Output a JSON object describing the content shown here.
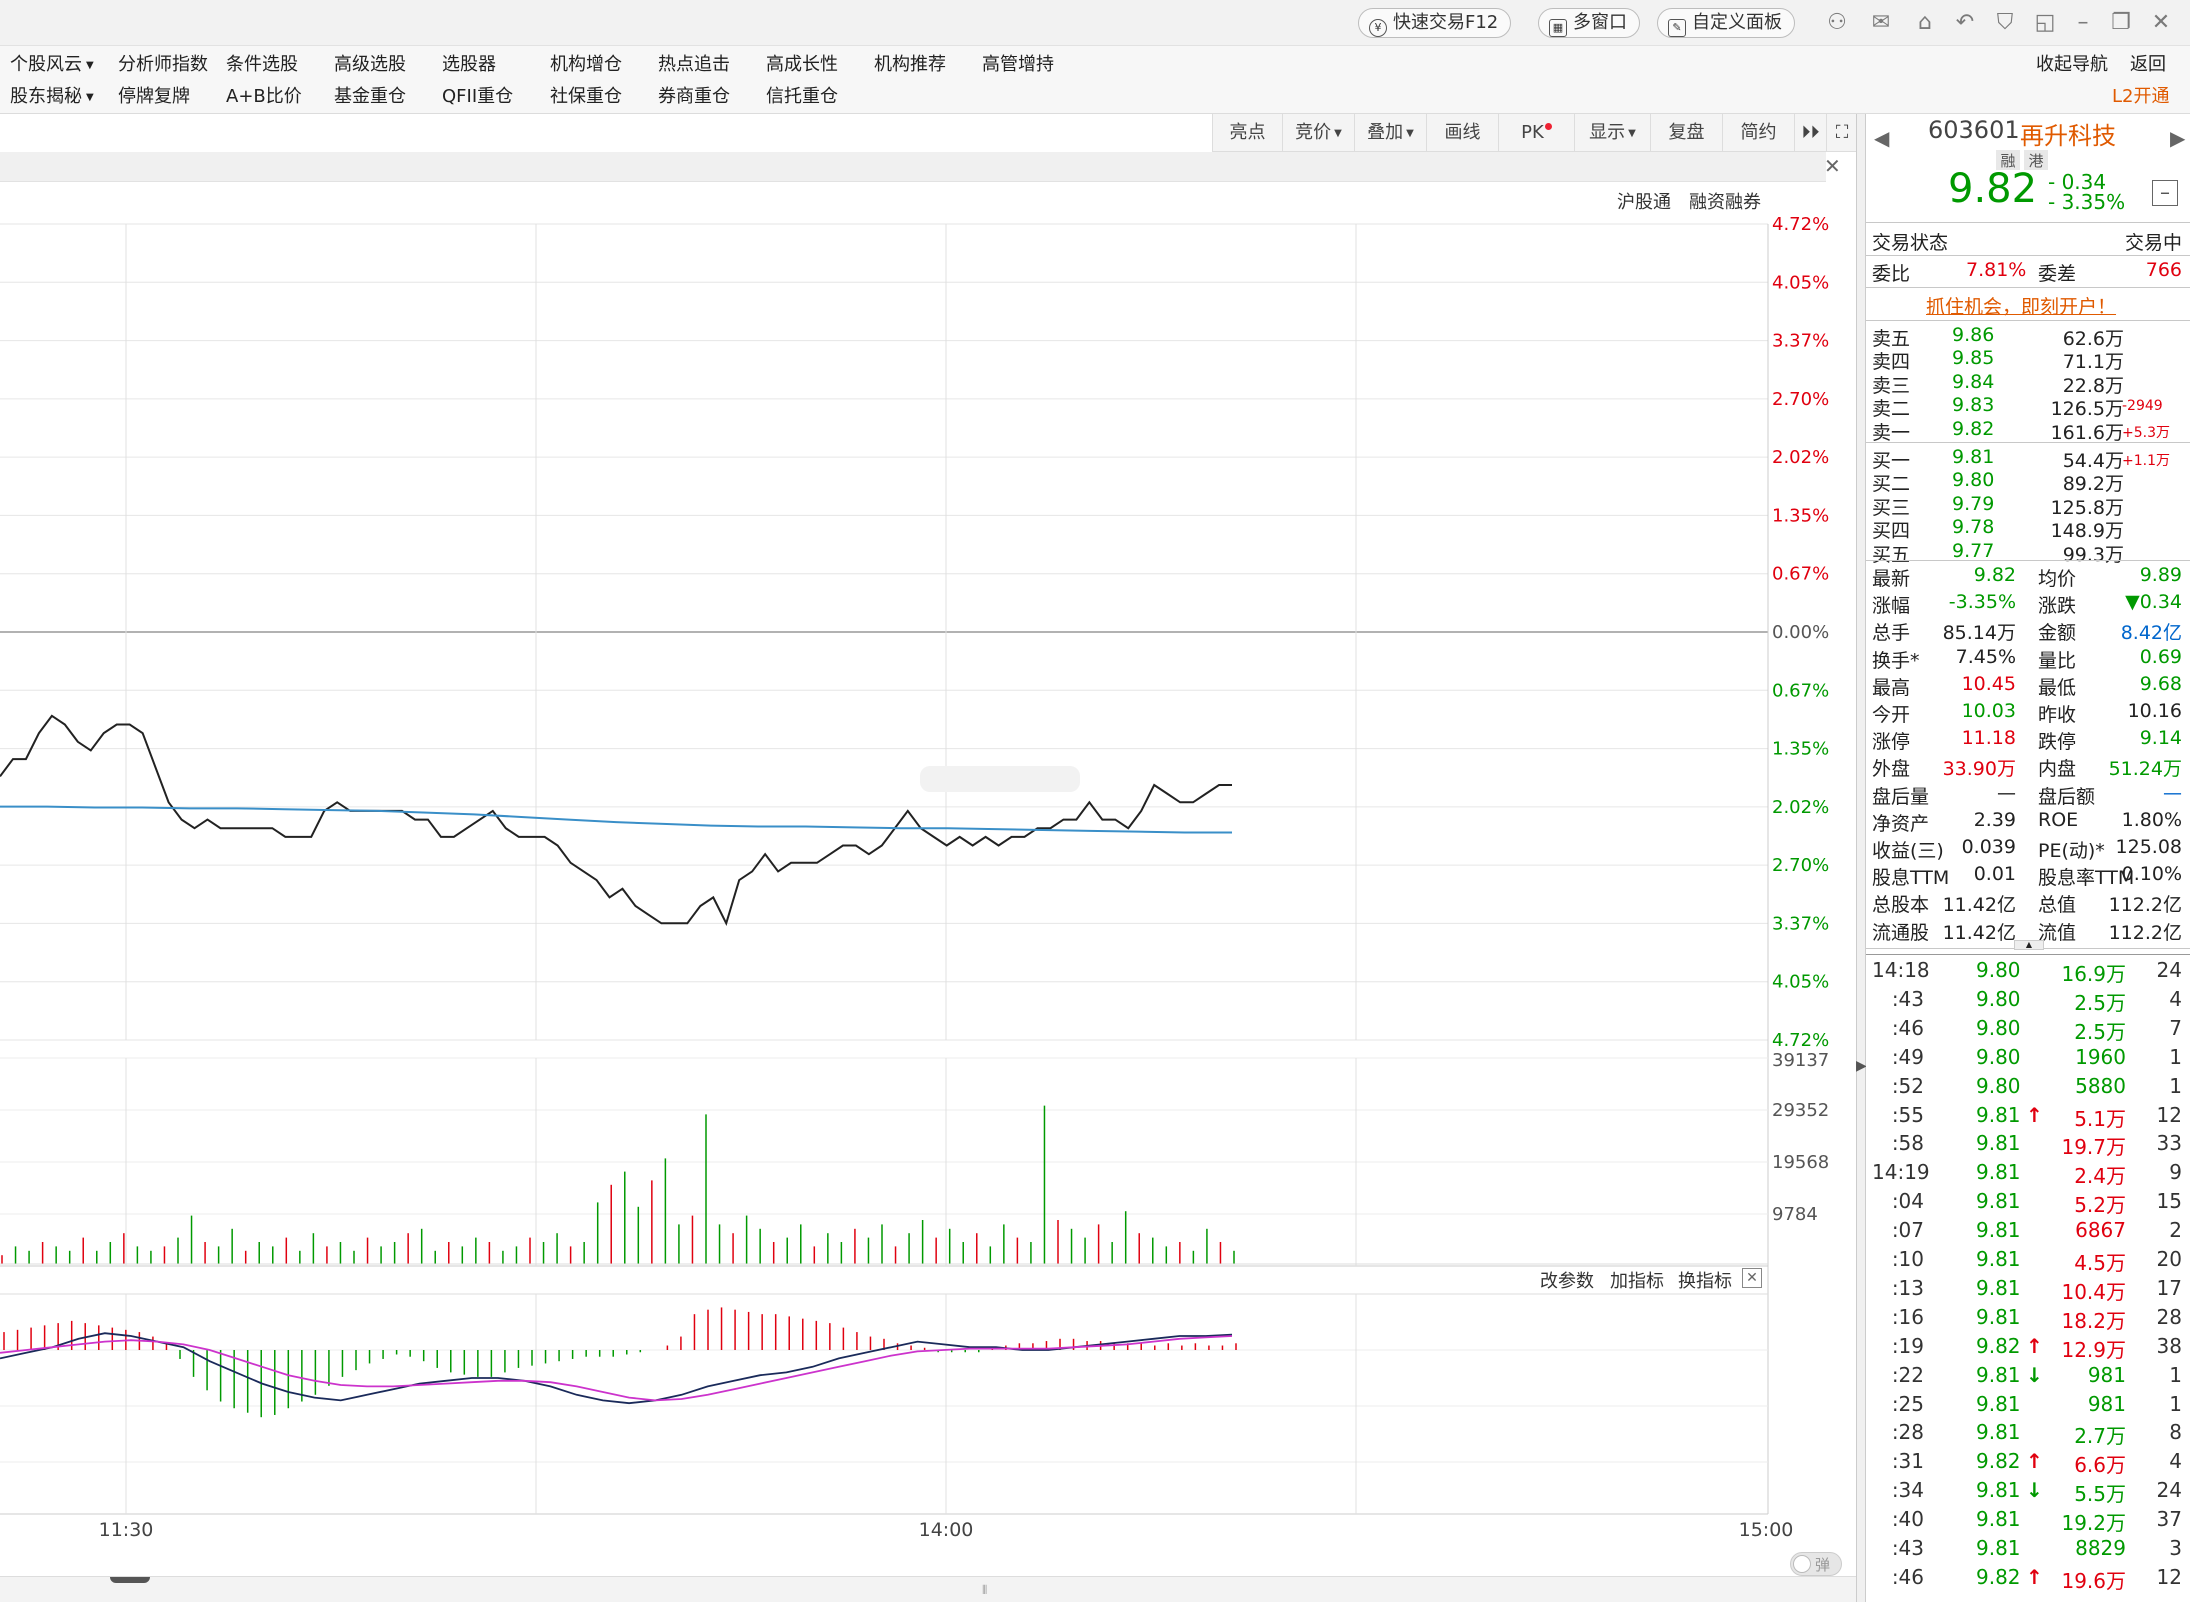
{
  "titlebar": {
    "quick_trade": "快速交易F12",
    "multi_window": "多窗口",
    "custom_panel": "自定义面板"
  },
  "menu": {
    "row1": [
      "个股风云",
      "分析师指数",
      "条件选股",
      "高级选股",
      "选股器",
      "机构增仓",
      "热点追击",
      "高成长性",
      "机构推荐",
      "高管增持"
    ],
    "row2": [
      "股东揭秘",
      "停牌复牌",
      "A+B比价",
      "基金重仓",
      "QFII重仓",
      "社保重仓",
      "券商重仓",
      "信托重仓"
    ],
    "collapse_nav": "收起导航",
    "back": "返回",
    "l2": "L2开通"
  },
  "toolbar": {
    "items": [
      "亮点",
      "竞价",
      "叠加",
      "画线",
      "PK",
      "显示",
      "复盘",
      "简约"
    ]
  },
  "chart_labels": {
    "hugutong": "沪股通",
    "margin": "融资融券",
    "macd_params": "改参数",
    "add_indicator": "加指标",
    "switch_indicator": "换指标",
    "danmaku": "弹"
  },
  "chart_data": {
    "type": "line",
    "y_pct_ticks": [
      "4.72%",
      "4.05%",
      "3.37%",
      "2.70%",
      "2.02%",
      "1.35%",
      "0.67%",
      "0.00%",
      "0.67%",
      "1.35%",
      "2.02%",
      "2.70%",
      "3.37%",
      "4.05%",
      "4.72%"
    ],
    "volume_ticks": [
      "39137",
      "29352",
      "19568",
      "9784"
    ],
    "x_ticks": [
      "11:30",
      "14:00",
      "15:00"
    ],
    "grid": true,
    "price_series": [
      3.05,
      3.25,
      3.25,
      3.55,
      3.75,
      3.65,
      3.45,
      3.35,
      3.55,
      3.65,
      3.65,
      3.55,
      3.15,
      2.75,
      2.55,
      2.45,
      2.55,
      2.45,
      2.45,
      2.45,
      2.45,
      2.45,
      2.35,
      2.35,
      2.35,
      2.65,
      2.75,
      2.65,
      2.65,
      2.65,
      2.65,
      2.65,
      2.55,
      2.55,
      2.35,
      2.35,
      2.45,
      2.55,
      2.65,
      2.45,
      2.35,
      2.35,
      2.35,
      2.25,
      2.05,
      1.95,
      1.85,
      1.65,
      1.75,
      1.55,
      1.45,
      1.35,
      1.35,
      1.35,
      1.55,
      1.65,
      1.35,
      1.85,
      1.95,
      2.15,
      1.95,
      2.05,
      2.05,
      2.05,
      2.15,
      2.25,
      2.25,
      2.15,
      2.25,
      2.45,
      2.65,
      2.45,
      2.35,
      2.25,
      2.35,
      2.25,
      2.35,
      2.25,
      2.35,
      2.35,
      2.45,
      2.45,
      2.55,
      2.55,
      2.75,
      2.55,
      2.55,
      2.45,
      2.65,
      2.95,
      2.85,
      2.75,
      2.75,
      2.85,
      2.95,
      2.95
    ],
    "avg_series": [
      2.7,
      2.7,
      2.69,
      2.69,
      2.68,
      2.68,
      2.67,
      2.66,
      2.65,
      2.63,
      2.61,
      2.58,
      2.55,
      2.52,
      2.5,
      2.48,
      2.47,
      2.47,
      2.46,
      2.45,
      2.45,
      2.44,
      2.43,
      2.42,
      2.41,
      2.4,
      2.4
    ],
    "volume_bars": [
      2,
      4,
      3,
      5,
      4,
      3,
      6,
      3,
      5,
      7,
      4,
      3,
      4,
      6,
      11,
      5,
      4,
      8,
      3,
      5,
      4,
      6,
      3,
      7,
      4,
      5,
      3,
      6,
      4,
      5,
      7,
      8,
      3,
      5,
      4,
      6,
      5,
      3,
      4,
      6,
      5,
      7,
      4,
      5,
      14,
      18,
      21,
      13,
      19,
      24,
      9,
      11,
      34,
      9,
      7,
      11,
      8,
      5,
      6,
      9,
      4,
      7,
      5,
      8,
      6,
      9,
      4,
      7,
      10,
      6,
      8,
      5,
      7,
      4,
      9,
      6,
      5,
      36,
      10,
      8,
      6,
      9,
      5,
      12,
      7,
      6,
      4,
      5,
      3,
      8,
      5,
      3
    ],
    "macd_dif": [
      -0.6,
      -0.2,
      0.2,
      0.8,
      1.2,
      1.0,
      0.6,
      0.2,
      -0.8,
      -1.6,
      -2.4,
      -3.0,
      -3.4,
      -3.6,
      -3.2,
      -2.8,
      -2.4,
      -2.2,
      -2.0,
      -2.0,
      -2.2,
      -2.6,
      -3.2,
      -3.6,
      -3.8,
      -3.6,
      -3.2,
      -2.6,
      -2.2,
      -1.8,
      -1.6,
      -1.2,
      -0.6,
      -0.2,
      0.2,
      0.6,
      0.4,
      0.2,
      0.2,
      0.0,
      0.0,
      0.2,
      0.4,
      0.6,
      0.8,
      1.0,
      1.0,
      1.1
    ],
    "macd_dea": [
      -0.2,
      0.0,
      0.2,
      0.4,
      0.6,
      0.7,
      0.6,
      0.4,
      0.0,
      -0.6,
      -1.2,
      -1.8,
      -2.2,
      -2.5,
      -2.6,
      -2.6,
      -2.5,
      -2.4,
      -2.3,
      -2.2,
      -2.2,
      -2.3,
      -2.6,
      -3.0,
      -3.4,
      -3.6,
      -3.5,
      -3.2,
      -2.8,
      -2.4,
      -2.0,
      -1.6,
      -1.2,
      -0.8,
      -0.4,
      -0.1,
      0.0,
      0.1,
      0.1,
      0.1,
      0.1,
      0.2,
      0.3,
      0.4,
      0.6,
      0.8,
      0.9,
      1.0
    ],
    "macd_hist": [
      0.8,
      0.9,
      1.0,
      1.1,
      1.2,
      1.3,
      1.2,
      1.1,
      1.0,
      0.9,
      0.8,
      0.6,
      0.3,
      -0.4,
      -1.2,
      -1.8,
      -2.3,
      -2.6,
      -2.8,
      -3.0,
      -2.9,
      -2.6,
      -2.3,
      -2.0,
      -1.6,
      -1.2,
      -0.9,
      -0.6,
      -0.4,
      -0.2,
      -0.3,
      -0.5,
      -0.8,
      -1.0,
      -1.1,
      -1.2,
      -1.2,
      -1.0,
      -0.8,
      -0.7,
      -0.6,
      -0.5,
      -0.4,
      -0.3,
      -0.3,
      -0.3,
      -0.2,
      -0.1,
      0.0,
      0.2,
      0.6,
      1.6,
      1.8,
      1.9,
      1.8,
      1.7,
      1.6,
      1.6,
      1.5,
      1.4,
      1.3,
      1.2,
      1.0,
      0.8,
      0.6,
      0.5,
      0.3,
      0.2,
      0.1,
      -0.1,
      -0.1,
      -0.1,
      -0.1,
      0.1,
      0.2,
      0.3,
      0.3,
      0.4,
      0.5,
      0.5,
      0.4,
      0.4,
      0.3,
      0.3,
      0.3,
      0.2,
      0.3,
      0.2,
      0.3,
      0.2,
      0.2,
      0.3
    ]
  },
  "quote": {
    "code": "603601",
    "name": "再升科技",
    "tag1": "融",
    "tag2": "港",
    "price": "9.82",
    "change": "- 0.34",
    "change_pct": "- 3.35%",
    "status_label": "交易状态",
    "status_value": "交易中",
    "weibi_label": "委比",
    "weibi_value": "7.81%",
    "weicha_label": "委差",
    "weicha_value": "766",
    "promo": "抓住机会，即刻开户！",
    "sells": [
      {
        "label": "卖五",
        "price": "9.86",
        "vol": "62.6万",
        "delta": ""
      },
      {
        "label": "卖四",
        "price": "9.85",
        "vol": "71.1万",
        "delta": ""
      },
      {
        "label": "卖三",
        "price": "9.84",
        "vol": "22.8万",
        "delta": ""
      },
      {
        "label": "卖二",
        "price": "9.83",
        "vol": "126.5万",
        "delta": "-2949"
      },
      {
        "label": "卖一",
        "price": "9.82",
        "vol": "161.6万",
        "delta": "+5.3万"
      }
    ],
    "buys": [
      {
        "label": "买一",
        "price": "9.81",
        "vol": "54.4万",
        "delta": "+1.1万"
      },
      {
        "label": "买二",
        "price": "9.80",
        "vol": "89.2万",
        "delta": ""
      },
      {
        "label": "买三",
        "price": "9.79",
        "vol": "125.8万",
        "delta": ""
      },
      {
        "label": "买四",
        "price": "9.78",
        "vol": "148.9万",
        "delta": ""
      },
      {
        "label": "买五",
        "price": "9.77",
        "vol": "99.3万",
        "delta": ""
      }
    ],
    "stats": [
      {
        "l1": "最新",
        "v1": "9.82",
        "c1": "g",
        "l2": "均价",
        "v2": "9.89",
        "c2": "g"
      },
      {
        "l1": "涨幅",
        "v1": "-3.35%",
        "c1": "g",
        "l2": "涨跌",
        "v2": "▼0.34",
        "c2": "g"
      },
      {
        "l1": "总手",
        "v1": "85.14万",
        "c1": "k",
        "l2": "金额",
        "v2": "8.42亿",
        "c2": "b"
      },
      {
        "l1": "换手*",
        "v1": "7.45%",
        "c1": "k",
        "l2": "量比",
        "v2": "0.69",
        "c2": "g"
      },
      {
        "l1": "最高",
        "v1": "10.45",
        "c1": "r",
        "l2": "最低",
        "v2": "9.68",
        "c2": "g"
      },
      {
        "l1": "今开",
        "v1": "10.03",
        "c1": "g",
        "l2": "昨收",
        "v2": "10.16",
        "c2": "k"
      },
      {
        "l1": "涨停",
        "v1": "11.18",
        "c1": "r",
        "l2": "跌停",
        "v2": "9.14",
        "c2": "g"
      },
      {
        "l1": "外盘",
        "v1": "33.90万",
        "c1": "r",
        "l2": "内盘",
        "v2": "51.24万",
        "c2": "g"
      },
      {
        "l1": "盘后量",
        "v1": "—",
        "c1": "k",
        "l2": "盘后额",
        "v2": "—",
        "c2": "b"
      },
      {
        "l1": "净资产",
        "v1": "2.39",
        "c1": "k",
        "l2": "ROE",
        "v2": "1.80%",
        "c2": "k"
      },
      {
        "l1": "收益(三)",
        "v1": "0.039",
        "c1": "k",
        "l2": "PE(动)*",
        "v2": "125.08",
        "c2": "k"
      },
      {
        "l1": "股息TTM",
        "v1": "0.01",
        "c1": "k",
        "l2": "股息率TTM",
        "v2": "0.10%",
        "c2": "k"
      },
      {
        "l1": "总股本",
        "v1": "11.42亿",
        "c1": "k",
        "l2": "总值",
        "v2": "112.2亿",
        "c2": "k"
      },
      {
        "l1": "流通股",
        "v1": "11.42亿",
        "c1": "k",
        "l2": "流值",
        "v2": "112.2亿",
        "c2": "k"
      }
    ],
    "trades": [
      {
        "time": "14:18",
        "price": "9.80",
        "pc": "g",
        "arrow": "",
        "vol": "16.9万",
        "vc": "g",
        "n": "24",
        "bold": true
      },
      {
        "time": ":43",
        "price": "9.80",
        "pc": "g",
        "arrow": "",
        "vol": "2.5万",
        "vc": "g",
        "n": "4"
      },
      {
        "time": ":46",
        "price": "9.80",
        "pc": "g",
        "arrow": "",
        "vol": "2.5万",
        "vc": "g",
        "n": "7"
      },
      {
        "time": ":49",
        "price": "9.80",
        "pc": "g",
        "arrow": "",
        "vol": "1960",
        "vc": "g",
        "n": "1"
      },
      {
        "time": ":52",
        "price": "9.80",
        "pc": "g",
        "arrow": "",
        "vol": "5880",
        "vc": "g",
        "n": "1"
      },
      {
        "time": ":55",
        "price": "9.81",
        "pc": "g",
        "arrow": "↑",
        "vol": "5.1万",
        "vc": "r",
        "n": "12"
      },
      {
        "time": ":58",
        "price": "9.81",
        "pc": "g",
        "arrow": "",
        "vol": "19.7万",
        "vc": "r",
        "n": "33"
      },
      {
        "time": "14:19",
        "price": "9.81",
        "pc": "g",
        "arrow": "",
        "vol": "2.4万",
        "vc": "r",
        "n": "9",
        "bold": true
      },
      {
        "time": ":04",
        "price": "9.81",
        "pc": "g",
        "arrow": "",
        "vol": "5.2万",
        "vc": "r",
        "n": "15"
      },
      {
        "time": ":07",
        "price": "9.81",
        "pc": "g",
        "arrow": "",
        "vol": "6867",
        "vc": "r",
        "n": "2"
      },
      {
        "time": ":10",
        "price": "9.81",
        "pc": "g",
        "arrow": "",
        "vol": "4.5万",
        "vc": "r",
        "n": "20"
      },
      {
        "time": ":13",
        "price": "9.81",
        "pc": "g",
        "arrow": "",
        "vol": "10.4万",
        "vc": "r",
        "n": "17"
      },
      {
        "time": ":16",
        "price": "9.81",
        "pc": "g",
        "arrow": "",
        "vol": "18.2万",
        "vc": "r",
        "n": "28"
      },
      {
        "time": ":19",
        "price": "9.82",
        "pc": "g",
        "arrow": "↑",
        "vol": "12.9万",
        "vc": "r",
        "n": "38"
      },
      {
        "time": ":22",
        "price": "9.81",
        "pc": "g",
        "arrow": "↓",
        "vol": "981",
        "vc": "g",
        "n": "1"
      },
      {
        "time": ":25",
        "price": "9.81",
        "pc": "g",
        "arrow": "",
        "vol": "981",
        "vc": "g",
        "n": "1"
      },
      {
        "time": ":28",
        "price": "9.81",
        "pc": "g",
        "arrow": "",
        "vol": "2.7万",
        "vc": "g",
        "n": "8"
      },
      {
        "time": ":31",
        "price": "9.82",
        "pc": "g",
        "arrow": "↑",
        "vol": "6.6万",
        "vc": "r",
        "n": "4"
      },
      {
        "time": ":34",
        "price": "9.81",
        "pc": "g",
        "arrow": "↓",
        "vol": "5.5万",
        "vc": "g",
        "n": "24"
      },
      {
        "time": ":40",
        "price": "9.81",
        "pc": "g",
        "arrow": "",
        "vol": "19.2万",
        "vc": "g",
        "n": "37"
      },
      {
        "time": ":43",
        "price": "9.81",
        "pc": "g",
        "arrow": "",
        "vol": "8829",
        "vc": "g",
        "n": "3"
      },
      {
        "time": ":46",
        "price": "9.82",
        "pc": "g",
        "arrow": "↑",
        "vol": "19.6万",
        "vc": "r",
        "n": "12"
      }
    ]
  }
}
